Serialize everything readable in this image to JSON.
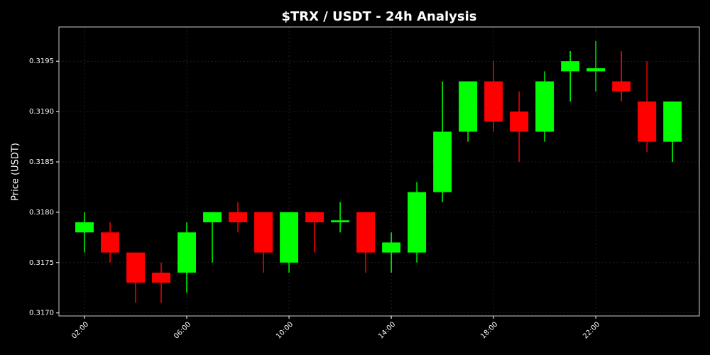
{
  "chart_data": {
    "type": "candlestick",
    "title": "$TRX / USDT - 24h Analysis",
    "y_label": "Price (USDT)",
    "x": [
      2,
      3,
      4,
      5,
      6,
      7,
      8,
      9,
      10,
      11,
      12,
      13,
      14,
      15,
      16,
      17,
      18,
      19,
      20,
      21,
      22,
      23,
      24,
      25
    ],
    "open": [
      0.3178,
      0.3178,
      0.3176,
      0.3174,
      0.3174,
      0.3179,
      0.318,
      0.318,
      0.3175,
      0.318,
      0.3179,
      0.318,
      0.3176,
      0.3176,
      0.3182,
      0.3188,
      0.3193,
      0.319,
      0.3188,
      0.3194,
      0.3194,
      0.3193,
      0.3191,
      0.3187
    ],
    "high": [
      0.318,
      0.3179,
      0.3176,
      0.3175,
      0.3179,
      0.318,
      0.3181,
      0.318,
      0.318,
      0.318,
      0.3181,
      0.318,
      0.3178,
      0.3183,
      0.3193,
      0.3193,
      0.3195,
      0.3192,
      0.3194,
      0.3196,
      0.3197,
      0.3196,
      0.3195,
      0.3191
    ],
    "low": [
      0.3176,
      0.3175,
      0.3171,
      0.3171,
      0.3172,
      0.3175,
      0.3178,
      0.3174,
      0.3174,
      0.3176,
      0.3178,
      0.3174,
      0.3174,
      0.3175,
      0.3181,
      0.3187,
      0.3188,
      0.3185,
      0.3187,
      0.3191,
      0.3192,
      0.3191,
      0.3186,
      0.3185
    ],
    "close": [
      0.3179,
      0.3176,
      0.3173,
      0.3173,
      0.3178,
      0.318,
      0.3179,
      0.3176,
      0.318,
      0.3179,
      0.31792,
      0.3176,
      0.3177,
      0.3182,
      0.3188,
      0.3193,
      0.3189,
      0.3188,
      0.3193,
      0.3195,
      0.31943,
      0.3192,
      0.3187,
      0.3191
    ],
    "up_color": "#00ff00",
    "down_color": "#ff0000",
    "xlim": [
      1,
      26.05
    ],
    "xticks": [
      {
        "value": 2,
        "label": "02:00"
      },
      {
        "value": 6,
        "label": "06:00"
      },
      {
        "value": 10,
        "label": "10:00"
      },
      {
        "value": 14,
        "label": "14:00"
      },
      {
        "value": 18,
        "label": "18:00"
      },
      {
        "value": 22,
        "label": "22:00"
      }
    ],
    "ylim": [
      0.31697,
      0.31984
    ],
    "yticks": [
      {
        "value": 0.317,
        "label": "0.3170"
      },
      {
        "value": 0.3175,
        "label": "0.3175"
      },
      {
        "value": 0.318,
        "label": "0.3180"
      },
      {
        "value": 0.3185,
        "label": "0.3185"
      },
      {
        "value": 0.319,
        "label": "0.3190"
      },
      {
        "value": 0.3195,
        "label": "0.3195"
      }
    ],
    "grid": true
  }
}
